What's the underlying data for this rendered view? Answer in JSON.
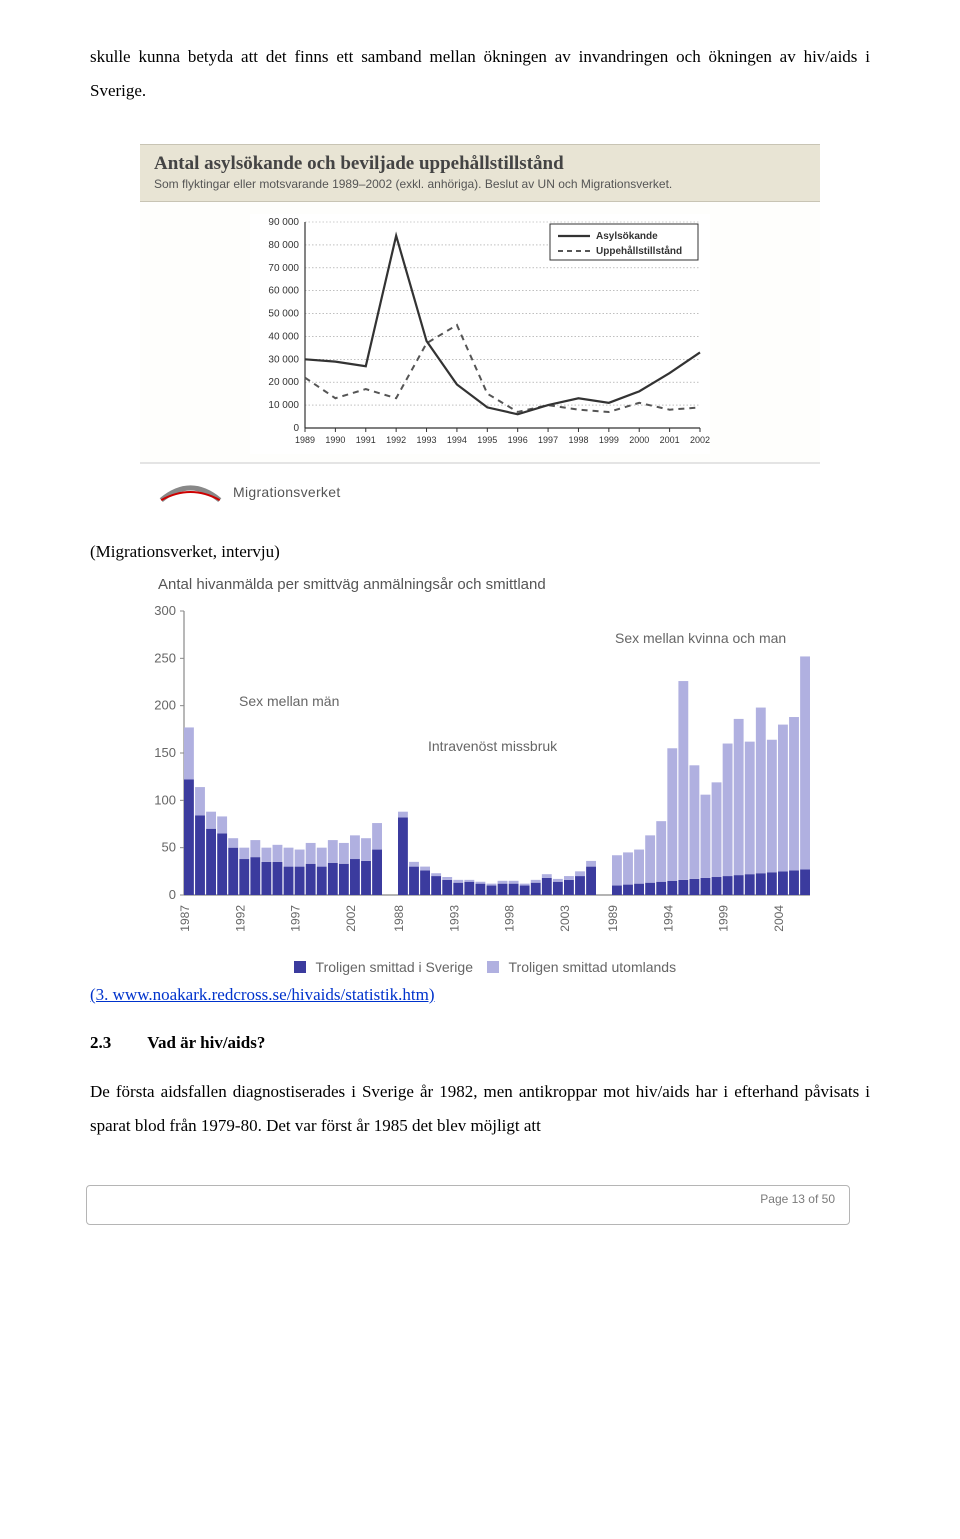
{
  "paragraph_top": "skulle kunna betyda att det finns ett samband mellan ökningen av invandringen och ökningen av hiv/aids i Sverige.",
  "chart1": {
    "title": "Antal asylsökande och beviljade uppehållstillstånd",
    "subtitle": "Som flyktingar eller motsvarande 1989–2002 (exkl. anhöriga). Beslut av UN och Migrationsverket.",
    "legend_a": "Asylsökande",
    "legend_b": "Uppehållstillstånd",
    "y_ticks": [
      "0",
      "10 000",
      "20 000",
      "30 000",
      "40 000",
      "50 000",
      "60 000",
      "70 000",
      "80 000",
      "90 000"
    ],
    "x_ticks": [
      "1989",
      "1990",
      "1991",
      "1992",
      "1993",
      "1994",
      "1995",
      "1996",
      "1997",
      "1998",
      "1999",
      "2000",
      "2001",
      "2002"
    ],
    "series_a": [
      30000,
      29000,
      27000,
      84000,
      38000,
      19000,
      9000,
      6000,
      10000,
      13000,
      11000,
      16000,
      24000,
      33000
    ],
    "series_b": [
      22000,
      13000,
      17000,
      13000,
      37000,
      45000,
      15000,
      7000,
      10000,
      8000,
      7000,
      11000,
      8000,
      9000
    ],
    "ylim": 90000,
    "line_color": "#333333",
    "dash_color": "#555555",
    "grid_color": "#999999",
    "bg": "#ffffff",
    "logo_text": "Migrationsverket"
  },
  "caption1": "(Migrationsverket, intervju)",
  "chart2": {
    "title": "Antal hivanmälda per smittväg anmälningsår och smittland",
    "y_ticks": [
      "0",
      "50",
      "100",
      "150",
      "200",
      "250",
      "300"
    ],
    "ylim": 300,
    "ann_left": "Sex mellan män",
    "ann_right": "Sex mellan kvinna och man",
    "ann_mid": "Intravenöst missbruk",
    "groups": [
      {
        "years": [
          "1987",
          "1992",
          "1997",
          "2002"
        ],
        "values": [
          {
            "a": 122,
            "b": 55
          },
          {
            "a": 84,
            "b": 30
          },
          {
            "a": 70,
            "b": 18
          },
          {
            "a": 65,
            "b": 18
          },
          {
            "a": 50,
            "b": 10
          },
          {
            "a": 38,
            "b": 12
          },
          {
            "a": 40,
            "b": 18
          },
          {
            "a": 35,
            "b": 15
          },
          {
            "a": 35,
            "b": 18
          },
          {
            "a": 30,
            "b": 20
          },
          {
            "a": 30,
            "b": 18
          },
          {
            "a": 33,
            "b": 22
          },
          {
            "a": 30,
            "b": 20
          },
          {
            "a": 34,
            "b": 24
          },
          {
            "a": 33,
            "b": 22
          },
          {
            "a": 38,
            "b": 25
          },
          {
            "a": 36,
            "b": 24
          },
          {
            "a": 48,
            "b": 28
          }
        ]
      },
      {
        "years": [
          "1988",
          "1993",
          "1998",
          "2003"
        ],
        "values": [
          {
            "a": 82,
            "b": 6
          },
          {
            "a": 30,
            "b": 5
          },
          {
            "a": 26,
            "b": 4
          },
          {
            "a": 20,
            "b": 3
          },
          {
            "a": 16,
            "b": 3
          },
          {
            "a": 13,
            "b": 3
          },
          {
            "a": 14,
            "b": 2
          },
          {
            "a": 12,
            "b": 2
          },
          {
            "a": 10,
            "b": 2
          },
          {
            "a": 12,
            "b": 3
          },
          {
            "a": 12,
            "b": 3
          },
          {
            "a": 10,
            "b": 2
          },
          {
            "a": 13,
            "b": 3
          },
          {
            "a": 18,
            "b": 4
          },
          {
            "a": 14,
            "b": 3
          },
          {
            "a": 16,
            "b": 4
          },
          {
            "a": 20,
            "b": 5
          },
          {
            "a": 30,
            "b": 6
          }
        ]
      },
      {
        "years": [
          "1989",
          "1994",
          "1999",
          "2004"
        ],
        "values": [
          {
            "a": 10,
            "b": 32
          },
          {
            "a": 11,
            "b": 34
          },
          {
            "a": 12,
            "b": 36
          },
          {
            "a": 13,
            "b": 50
          },
          {
            "a": 14,
            "b": 64
          },
          {
            "a": 15,
            "b": 140
          },
          {
            "a": 16,
            "b": 210
          },
          {
            "a": 17,
            "b": 120
          },
          {
            "a": 18,
            "b": 88
          },
          {
            "a": 19,
            "b": 100
          },
          {
            "a": 20,
            "b": 140
          },
          {
            "a": 21,
            "b": 165
          },
          {
            "a": 22,
            "b": 140
          },
          {
            "a": 23,
            "b": 175
          },
          {
            "a": 24,
            "b": 140
          },
          {
            "a": 25,
            "b": 155
          },
          {
            "a": 26,
            "b": 162
          },
          {
            "a": 27,
            "b": 225
          }
        ]
      }
    ],
    "color_a": "#3b3b9e",
    "color_b": "#b0b0e0",
    "axis_color": "#888",
    "text_color": "#666",
    "legend_a": "Troligen smittad i Sverige",
    "legend_b": "Troligen smittad utomlands"
  },
  "link_text": "(3. www.noakark.redcross.se/hivaids/statistik.htm)",
  "section_num": "2.3",
  "section_title": "Vad är hiv/aids?",
  "paragraph_bottom": "De första aidsfallen diagnostiserades i Sverige år 1982, men antikroppar mot hiv/aids har i efterhand påvisats i sparat blod från 1979-80. Det var först år 1985 det blev möjligt att",
  "page_label": "Page 13 of 50"
}
